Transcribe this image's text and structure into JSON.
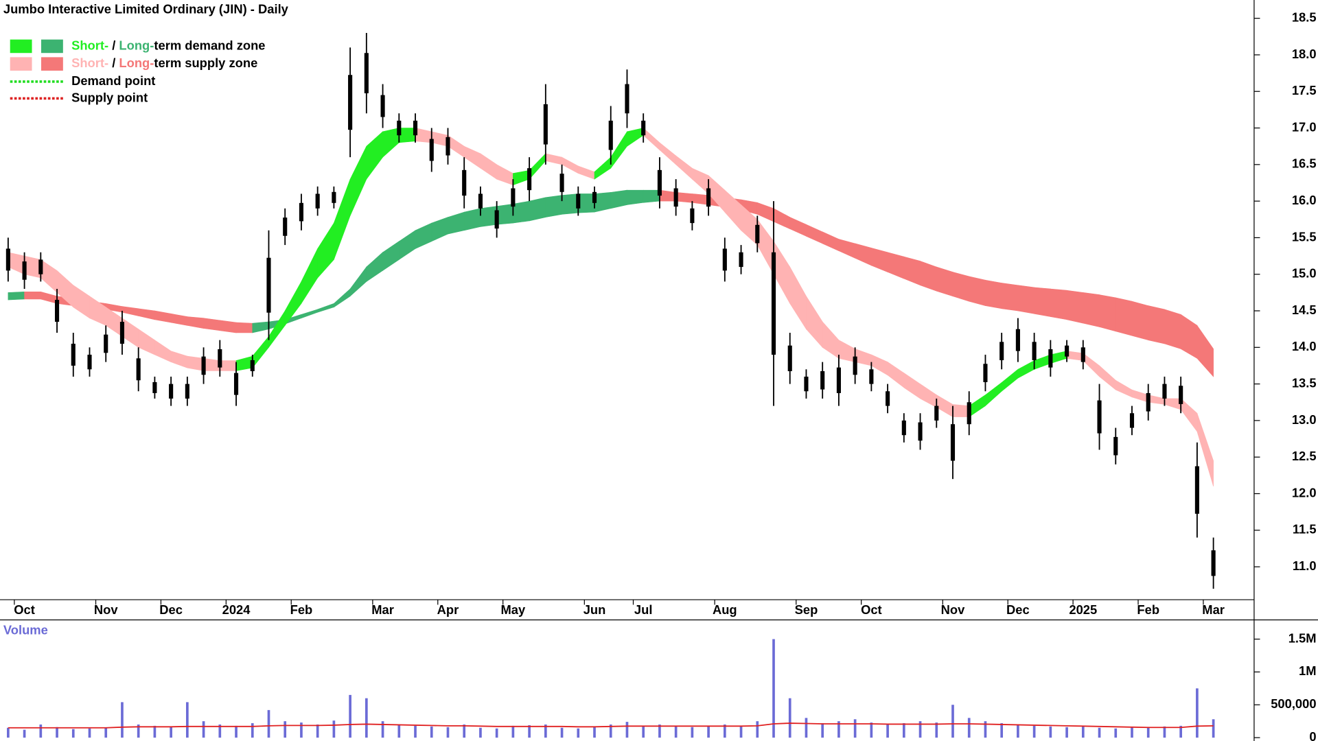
{
  "chart_data": {
    "type": "range_bar",
    "title": "Jumbo Interactive Limited Ordinary (JIN) - Daily",
    "bar_color": "#000000",
    "categories": [
      null,
      "Oct",
      null,
      null,
      null,
      null,
      "Nov",
      null,
      null,
      null,
      "Dec",
      null,
      null,
      null,
      "2024",
      null,
      null,
      null,
      "Feb",
      null,
      null,
      null,
      null,
      "Mar",
      null,
      null,
      null,
      "Apr",
      null,
      null,
      null,
      "May",
      null,
      null,
      null,
      null,
      "Jun",
      null,
      null,
      "Jul",
      null,
      null,
      null,
      null,
      "Aug",
      null,
      null,
      null,
      null,
      "Sep",
      null,
      null,
      null,
      "Oct",
      null,
      null,
      null,
      null,
      "Nov",
      null,
      null,
      null,
      "Dec",
      null,
      null,
      null,
      "2025",
      null,
      null,
      null,
      "Feb",
      null,
      null,
      null,
      "Mar",
      null,
      null
    ],
    "high": [
      15.5,
      15.3,
      15.3,
      14.8,
      14.2,
      14.0,
      14.3,
      14.5,
      14.0,
      13.6,
      13.6,
      13.6,
      14.0,
      14.1,
      13.8,
      13.9,
      15.6,
      15.9,
      16.1,
      16.2,
      16.2,
      18.1,
      18.3,
      17.6,
      17.2,
      17.2,
      17.0,
      17.0,
      16.6,
      16.2,
      16.0,
      16.3,
      16.6,
      17.6,
      16.5,
      16.2,
      16.2,
      17.3,
      17.8,
      17.2,
      16.6,
      16.3,
      16.0,
      16.3,
      15.5,
      15.4,
      15.8,
      16.0,
      14.2,
      13.7,
      13.8,
      13.9,
      14.0,
      13.8,
      13.5,
      13.1,
      13.1,
      13.3,
      13.2,
      13.4,
      13.9,
      14.2,
      14.4,
      14.2,
      14.1,
      14.1,
      14.1,
      13.5,
      12.9,
      13.2,
      13.5,
      13.6,
      13.6,
      12.7,
      11.4,
      null,
      null
    ],
    "low": [
      14.9,
      14.8,
      14.9,
      14.2,
      13.6,
      13.6,
      13.8,
      13.9,
      13.4,
      13.3,
      13.2,
      13.2,
      13.5,
      13.6,
      13.2,
      13.6,
      14.1,
      15.4,
      15.6,
      15.8,
      15.9,
      16.6,
      17.2,
      17.0,
      16.8,
      16.8,
      16.4,
      16.5,
      15.9,
      15.8,
      15.5,
      15.8,
      16.0,
      16.5,
      16.0,
      15.8,
      15.9,
      16.5,
      17.0,
      16.8,
      15.9,
      15.8,
      15.6,
      15.8,
      14.9,
      15.0,
      15.3,
      13.2,
      13.5,
      13.3,
      13.3,
      13.2,
      13.5,
      13.4,
      13.1,
      12.7,
      12.6,
      12.9,
      12.2,
      12.8,
      13.4,
      13.7,
      13.8,
      13.7,
      13.6,
      13.8,
      13.7,
      12.6,
      12.4,
      12.8,
      13.0,
      13.2,
      13.1,
      11.4,
      10.7,
      null,
      null
    ],
    "zones": {
      "short_lower": [
        15.1,
        15.0,
        14.95,
        14.75,
        14.55,
        14.4,
        14.3,
        14.15,
        14.0,
        13.9,
        13.8,
        13.72,
        13.68,
        13.68,
        13.68,
        13.72,
        14.0,
        14.3,
        14.6,
        14.95,
        15.2,
        15.8,
        16.3,
        16.6,
        16.8,
        16.82,
        16.8,
        16.75,
        16.6,
        16.45,
        16.3,
        16.22,
        16.3,
        16.55,
        16.5,
        16.38,
        16.3,
        16.45,
        16.75,
        16.9,
        16.7,
        16.5,
        16.3,
        16.1,
        15.85,
        15.6,
        15.4,
        15.0,
        14.6,
        14.25,
        14.0,
        13.85,
        13.8,
        13.75,
        13.62,
        13.45,
        13.3,
        13.18,
        13.05,
        13.05,
        13.2,
        13.4,
        13.58,
        13.7,
        13.78,
        13.85,
        13.82,
        13.6,
        13.42,
        13.32,
        13.25,
        13.22,
        13.15,
        12.85,
        12.1,
        null,
        null
      ],
      "short_upper": [
        15.3,
        15.25,
        15.2,
        15.05,
        14.85,
        14.7,
        14.55,
        14.4,
        14.25,
        14.1,
        13.95,
        13.88,
        13.85,
        13.82,
        13.82,
        13.88,
        14.15,
        14.5,
        14.9,
        15.35,
        15.7,
        16.3,
        16.75,
        16.95,
        17.0,
        17.0,
        16.95,
        16.9,
        16.75,
        16.65,
        16.5,
        16.38,
        16.42,
        16.65,
        16.6,
        16.48,
        16.4,
        16.6,
        16.95,
        17.0,
        16.8,
        16.62,
        16.45,
        16.35,
        16.15,
        15.95,
        15.75,
        15.45,
        15.1,
        14.7,
        14.35,
        14.1,
        13.98,
        13.9,
        13.8,
        13.65,
        13.5,
        13.35,
        13.22,
        13.2,
        13.35,
        13.52,
        13.7,
        13.82,
        13.9,
        13.95,
        13.92,
        13.75,
        13.55,
        13.42,
        13.35,
        13.3,
        13.3,
        13.1,
        12.45,
        null,
        null
      ],
      "long_lower": [
        14.65,
        14.66,
        14.66,
        14.6,
        14.57,
        14.55,
        14.52,
        14.48,
        14.43,
        14.38,
        14.34,
        14.3,
        14.26,
        14.23,
        14.2,
        14.2,
        14.25,
        14.32,
        14.4,
        14.48,
        14.55,
        14.7,
        14.9,
        15.05,
        15.2,
        15.35,
        15.45,
        15.55,
        15.6,
        15.65,
        15.68,
        15.7,
        15.73,
        15.78,
        15.82,
        15.84,
        15.85,
        15.9,
        15.95,
        15.98,
        16.0,
        16.0,
        15.98,
        15.95,
        15.92,
        15.88,
        15.82,
        15.72,
        15.62,
        15.52,
        15.42,
        15.32,
        15.22,
        15.12,
        15.03,
        14.94,
        14.85,
        14.77,
        14.7,
        14.63,
        14.57,
        14.53,
        14.5,
        14.46,
        14.42,
        14.38,
        14.33,
        14.28,
        14.22,
        14.16,
        14.1,
        14.05,
        13.98,
        13.85,
        13.6,
        null,
        null
      ],
      "long_upper": [
        14.75,
        14.76,
        14.76,
        14.7,
        14.67,
        14.63,
        14.6,
        14.56,
        14.53,
        14.5,
        14.46,
        14.42,
        14.4,
        14.37,
        14.34,
        14.33,
        14.35,
        14.38,
        14.45,
        14.52,
        14.6,
        14.8,
        15.1,
        15.3,
        15.45,
        15.6,
        15.7,
        15.78,
        15.85,
        15.9,
        15.93,
        15.96,
        16.0,
        16.05,
        16.08,
        16.1,
        16.1,
        16.12,
        16.15,
        16.15,
        16.15,
        16.12,
        16.1,
        16.08,
        16.05,
        16.02,
        15.98,
        15.9,
        15.78,
        15.68,
        15.58,
        15.48,
        15.42,
        15.36,
        15.3,
        15.24,
        15.18,
        15.1,
        15.03,
        14.97,
        14.92,
        14.88,
        14.85,
        14.82,
        14.8,
        14.78,
        14.75,
        14.72,
        14.68,
        14.63,
        14.57,
        14.52,
        14.45,
        14.3,
        13.98,
        null,
        null
      ]
    },
    "legend": [
      {
        "short": "Short-",
        "sep": " / ",
        "long": "Long-",
        "rest": "term demand zone",
        "short_color": "#22ee22",
        "long_color": "#3cb371"
      },
      {
        "short": "Short-",
        "sep": " / ",
        "long": "Long-",
        "rest": "term supply zone",
        "short_color": "#ffb3b3",
        "long_color": "#f47878"
      },
      {
        "label": "Demand point",
        "color": "#22dd22"
      },
      {
        "label": "Supply point",
        "color": "#dd2222"
      }
    ],
    "ylim": [
      10.55,
      18.75
    ],
    "yticks": [
      {
        "value": 11,
        "label": "11.0"
      },
      {
        "value": 11.5,
        "label": "11.5"
      },
      {
        "value": 12,
        "label": "12.0"
      },
      {
        "value": 12.5,
        "label": "12.5"
      },
      {
        "value": 13,
        "label": "13.0"
      },
      {
        "value": 13.5,
        "label": "13.5"
      },
      {
        "value": 14,
        "label": "14.0"
      },
      {
        "value": 14.5,
        "label": "14.5"
      },
      {
        "value": 15,
        "label": "15.0"
      },
      {
        "value": 15.5,
        "label": "15.5"
      },
      {
        "value": 16,
        "label": "16.0"
      },
      {
        "value": 16.5,
        "label": "16.5"
      },
      {
        "value": 17,
        "label": "17.0"
      },
      {
        "value": 17.5,
        "label": "17.5"
      },
      {
        "value": 18,
        "label": "18.0"
      },
      {
        "value": 18.5,
        "label": "18.5"
      }
    ],
    "volume": {
      "label": "Volume",
      "color": "#6b6bd6",
      "average_color": "#e02020",
      "values": [
        150000,
        120000,
        200000,
        160000,
        130000,
        140000,
        150000,
        540000,
        200000,
        180000,
        170000,
        540000,
        250000,
        200000,
        180000,
        220000,
        420000,
        250000,
        230000,
        200000,
        260000,
        650000,
        600000,
        250000,
        200000,
        180000,
        170000,
        160000,
        200000,
        150000,
        140000,
        180000,
        190000,
        200000,
        150000,
        140000,
        160000,
        200000,
        240000,
        180000,
        200000,
        170000,
        160000,
        170000,
        200000,
        180000,
        250000,
        1500000,
        600000,
        300000,
        220000,
        250000,
        280000,
        230000,
        200000,
        220000,
        250000,
        230000,
        500000,
        300000,
        250000,
        220000,
        200000,
        180000,
        170000,
        160000,
        180000,
        150000,
        140000,
        160000,
        150000,
        170000,
        180000,
        750000,
        280000,
        null,
        null
      ],
      "average": [
        150000,
        150000,
        150000,
        150000,
        150000,
        150000,
        150000,
        160000,
        165000,
        165000,
        165000,
        170000,
        170000,
        170000,
        170000,
        170000,
        180000,
        185000,
        185000,
        185000,
        190000,
        200000,
        205000,
        200000,
        195000,
        190000,
        185000,
        180000,
        180000,
        175000,
        170000,
        170000,
        170000,
        170000,
        170000,
        165000,
        165000,
        170000,
        175000,
        175000,
        175000,
        175000,
        175000,
        175000,
        175000,
        175000,
        180000,
        210000,
        220000,
        215000,
        210000,
        210000,
        210000,
        210000,
        205000,
        205000,
        205000,
        205000,
        210000,
        210000,
        205000,
        200000,
        195000,
        190000,
        185000,
        180000,
        175000,
        170000,
        165000,
        160000,
        155000,
        155000,
        155000,
        175000,
        180000,
        null,
        null
      ],
      "ylim": [
        0,
        1780000
      ],
      "yticks": [
        0,
        {
          "value": 500000,
          "label": "500,000"
        },
        {
          "value": 1000000,
          "label": "1M"
        },
        {
          "value": 1500000,
          "label": "1.5M"
        }
      ]
    }
  }
}
